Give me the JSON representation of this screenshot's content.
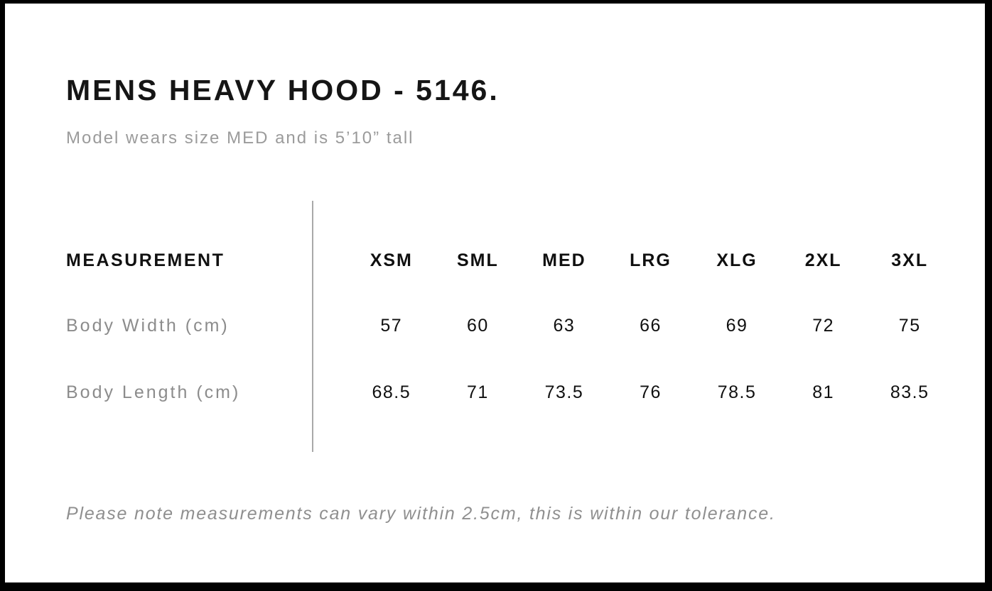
{
  "colors": {
    "background": "#ffffff",
    "frame_border": "#000000",
    "text_primary": "#101010",
    "text_muted": "#8c8c8c",
    "subtitle_gray": "#9b9b9b",
    "divider_gray": "#a9a9a9"
  },
  "header": {
    "title": "MENS HEAVY HOOD - 5146.",
    "subtitle": "Model wears size MED and is 5’10” tall"
  },
  "size_table": {
    "label_column_header": "MEASUREMENT",
    "size_headers": [
      "XSM",
      "SML",
      "MED",
      "LRG",
      "XLG",
      "2XL",
      "3XL"
    ],
    "rows": [
      {
        "label": "Body Width (cm)",
        "values": [
          "57",
          "60",
          "63",
          "66",
          "69",
          "72",
          "75"
        ]
      },
      {
        "label": "Body Length (cm)",
        "values": [
          "68.5",
          "71",
          "73.5",
          "76",
          "78.5",
          "81",
          "83.5"
        ]
      }
    ]
  },
  "footnote": "Please note measurements can vary within 2.5cm, this is within our tolerance."
}
